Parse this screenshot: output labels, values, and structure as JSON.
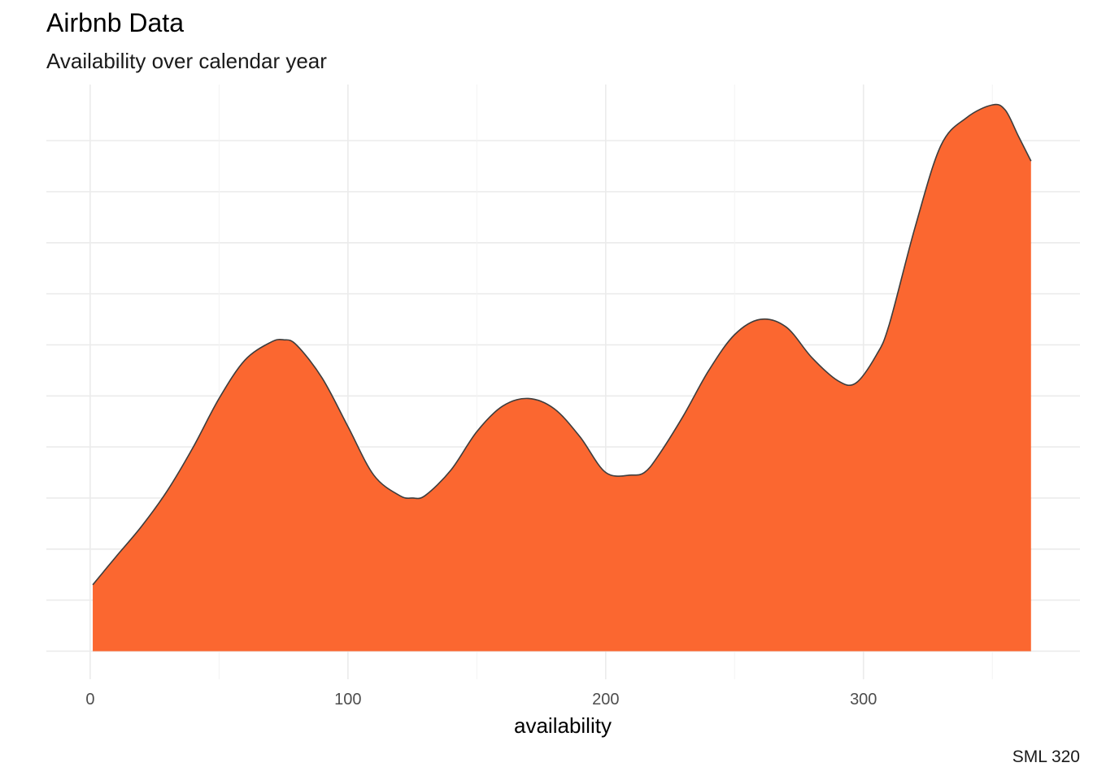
{
  "title": "Airbnb Data",
  "subtitle": "Availability over calendar year",
  "caption": "SML 320",
  "colors": {
    "fill": "#FB6730",
    "outline": "#3d3d3d",
    "grid_major": "#ebebeb",
    "grid_minor": "#f3f3f3",
    "background": "#ffffff"
  },
  "chart_data": {
    "type": "area",
    "series": [
      {
        "x": [
          1,
          10,
          20,
          30,
          40,
          50,
          60,
          70,
          75,
          80,
          90,
          100,
          110,
          120,
          125,
          130,
          140,
          150,
          160,
          170,
          180,
          190,
          200,
          210,
          215,
          220,
          230,
          240,
          250,
          260,
          270,
          280,
          290,
          297,
          305,
          310,
          320,
          330,
          340,
          350,
          355,
          360,
          365
        ],
        "y": [
          0.13,
          0.185,
          0.245,
          0.315,
          0.4,
          0.495,
          0.57,
          0.605,
          0.61,
          0.6,
          0.535,
          0.44,
          0.345,
          0.305,
          0.3,
          0.305,
          0.355,
          0.43,
          0.48,
          0.495,
          0.475,
          0.42,
          0.35,
          0.345,
          0.35,
          0.38,
          0.46,
          0.55,
          0.62,
          0.65,
          0.635,
          0.575,
          0.53,
          0.525,
          0.58,
          0.64,
          0.83,
          0.99,
          1.045,
          1.07,
          1.06,
          1.01,
          0.96
        ]
      }
    ],
    "xlabel": "availability",
    "ylabel": "",
    "xlim": [
      -17,
      384
    ],
    "ylim": [
      -0.055,
      1.11
    ],
    "x_ticks": [
      0,
      100,
      200,
      300
    ],
    "x_minor_ticks": [
      50,
      150,
      250,
      350
    ],
    "y_gridlines": [
      0,
      0.1,
      0.2,
      0.3,
      0.4,
      0.5,
      0.6,
      0.7,
      0.8,
      0.9,
      1.0
    ],
    "y_tick_labels_shown": false,
    "grid": true,
    "legend": "none"
  }
}
